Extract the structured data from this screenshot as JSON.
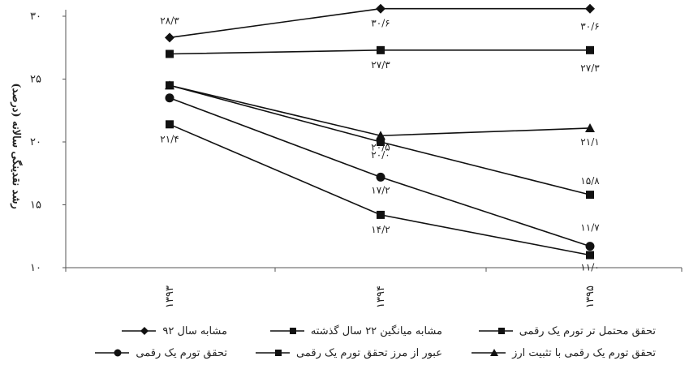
{
  "chart_data": {
    "type": "line",
    "categories": [
      "۱۳۹۳",
      "۱۳۹۴",
      "۱۳۹۵"
    ],
    "ylabel": "رشد نقدینگی سالانه (درصد)",
    "ylim": [
      10,
      30
    ],
    "yticks": [
      10,
      15,
      20,
      25,
      30
    ],
    "ytick_labels": [
      "۱۰",
      "۱۵",
      "۲۰",
      "۲۵",
      "۳۰"
    ],
    "grid": false,
    "legend_position": "bottom",
    "series": [
      {
        "name": "مشابه سال ۹۲",
        "marker": "diamond",
        "color": "#111111",
        "values": [
          28.3,
          30.6,
          30.6
        ],
        "labels": [
          "۲۸/۳",
          "۳۰/۶",
          "۳۰/۶"
        ]
      },
      {
        "name": "مشابه میانگین ۲۲ سال گذشته",
        "marker": "square",
        "color": "#111111",
        "values": [
          27.0,
          27.3,
          27.3
        ],
        "labels": [
          "",
          "۲۷/۳",
          "۲۷/۳"
        ]
      },
      {
        "name": "تحقق محتمل تر تورم یک رقمی",
        "marker": "square",
        "color": "#111111",
        "values": [
          24.5,
          20.0,
          15.8
        ],
        "labels": [
          "",
          "۲۰/۰",
          "۱۵/۸"
        ]
      },
      {
        "name": "تحقق تورم یک رقمی",
        "marker": "circle",
        "color": "#111111",
        "values": [
          23.5,
          17.2,
          11.7
        ],
        "labels": [
          "",
          "۱۷/۲",
          "۱۱/۷"
        ]
      },
      {
        "name": "عبور از مرز تحقق تورم یک رقمی",
        "marker": "square",
        "color": "#111111",
        "values": [
          21.4,
          14.2,
          11.0
        ],
        "labels": [
          "۲۱/۴",
          "۱۴/۲",
          "۱۱/۰"
        ]
      },
      {
        "name": "تحقق تورم یک رقمی با تثبیت ارز",
        "marker": "triangle",
        "color": "#111111",
        "values": [
          24.5,
          20.5,
          21.1
        ],
        "labels": [
          "",
          "۲۰/۵",
          "۲۱/۱"
        ]
      }
    ]
  }
}
